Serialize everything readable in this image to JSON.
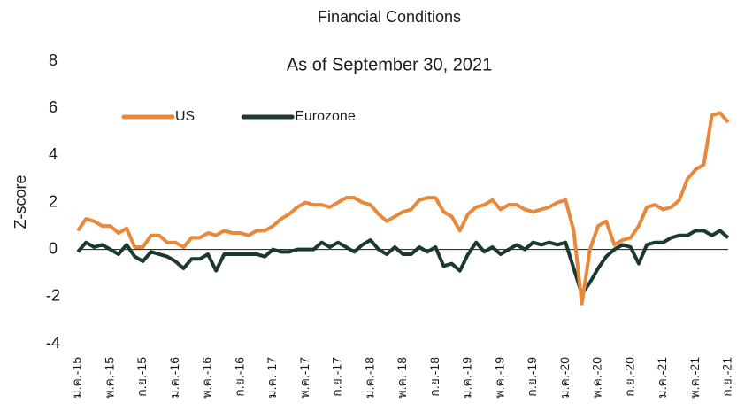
{
  "chart_data": {
    "type": "line",
    "title": "Financial Conditions",
    "subtitle": "As of September 30, 2021",
    "y_label": "Z-score",
    "categories": [
      "ม.ค.-15",
      null,
      null,
      null,
      "พ.ค.-15",
      null,
      null,
      null,
      "ก.ย.-15",
      null,
      null,
      null,
      "ม.ค.-16",
      null,
      null,
      null,
      "พ.ค.-16",
      null,
      null,
      null,
      "ก.ย.-16",
      null,
      null,
      null,
      "ม.ค.-17",
      null,
      null,
      null,
      "พ.ค.-17",
      null,
      null,
      null,
      "ก.ย.-17",
      null,
      null,
      null,
      "ม.ค.-18",
      null,
      null,
      null,
      "พ.ค.-18",
      null,
      null,
      null,
      "ก.ย.-18",
      null,
      null,
      null,
      "ม.ค.-19",
      null,
      null,
      null,
      "พ.ค.-19",
      null,
      null,
      null,
      "ก.ย.-19",
      null,
      null,
      null,
      "ม.ค.-20",
      null,
      null,
      null,
      "พ.ค.-20",
      null,
      null,
      null,
      "ก.ย.-20",
      null,
      null,
      null,
      "ม.ค.-21",
      null,
      null,
      null,
      "พ.ค.-21",
      null,
      null,
      null,
      "ก.ย.-21"
    ],
    "series": [
      {
        "name": "US",
        "color": "#e8883a",
        "values": [
          0.8,
          1.3,
          1.2,
          1.0,
          1.0,
          0.7,
          0.9,
          0.1,
          0.1,
          0.6,
          0.6,
          0.3,
          0.3,
          0.1,
          0.5,
          0.5,
          0.7,
          0.6,
          0.8,
          0.7,
          0.7,
          0.6,
          0.8,
          0.8,
          1.0,
          1.3,
          1.5,
          1.8,
          2.0,
          1.9,
          1.9,
          1.8,
          2.0,
          2.2,
          2.2,
          2.0,
          1.9,
          1.5,
          1.2,
          1.4,
          1.6,
          1.7,
          2.1,
          2.2,
          2.2,
          1.6,
          1.4,
          0.8,
          1.5,
          1.8,
          1.9,
          2.1,
          1.7,
          1.9,
          1.9,
          1.7,
          1.6,
          1.7,
          1.8,
          2.0,
          2.1,
          0.8,
          -2.3,
          0.0,
          1.0,
          1.2,
          0.2,
          0.4,
          0.5,
          1.0,
          1.8,
          1.9,
          1.7,
          1.8,
          2.1,
          3.0,
          3.4,
          3.6,
          5.7,
          5.8,
          5.4
        ]
      },
      {
        "name": "Eurozone",
        "color": "#1c3a2c",
        "values": [
          -0.1,
          0.3,
          0.1,
          0.2,
          0.0,
          -0.2,
          0.2,
          -0.3,
          -0.5,
          -0.1,
          -0.2,
          -0.3,
          -0.5,
          -0.8,
          -0.4,
          -0.4,
          -0.2,
          -0.9,
          -0.2,
          -0.2,
          -0.2,
          -0.2,
          -0.2,
          -0.3,
          0.0,
          -0.1,
          -0.1,
          0.0,
          0.0,
          0.0,
          0.3,
          0.1,
          0.3,
          0.1,
          -0.1,
          0.2,
          0.4,
          0.0,
          -0.2,
          0.1,
          -0.2,
          -0.2,
          0.1,
          -0.1,
          0.1,
          -0.7,
          -0.6,
          -0.9,
          -0.2,
          0.3,
          -0.1,
          0.1,
          -0.2,
          0.0,
          0.2,
          0.0,
          0.3,
          0.2,
          0.3,
          0.2,
          0.3,
          -0.8,
          -1.9,
          -1.4,
          -0.8,
          -0.3,
          0.0,
          0.2,
          0.1,
          -0.6,
          0.2,
          0.3,
          0.3,
          0.5,
          0.6,
          0.6,
          0.8,
          0.8,
          0.6,
          0.8,
          0.5
        ]
      }
    ],
    "ylim": [
      -4,
      8
    ],
    "yticks": [
      -4,
      -2,
      0,
      2,
      4,
      6,
      8
    ],
    "grid": false
  }
}
